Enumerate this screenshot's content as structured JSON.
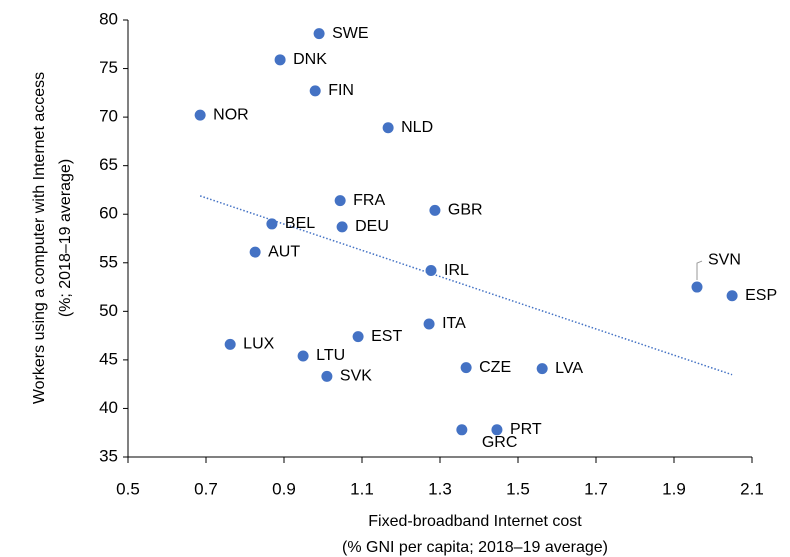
{
  "chart_data": {
    "type": "scatter",
    "x_label": [
      "Fixed-broadband  Internet cost",
      "(% GNI per capita; 2018–19 average)"
    ],
    "y_label": [
      "Workers using a computer with Internet access",
      "(%; 2018–19 average)"
    ],
    "labels": [
      "SWE",
      "DNK",
      "FIN",
      "NOR",
      "NLD",
      "FRA",
      "GBR",
      "BEL",
      "DEU",
      "AUT",
      "IRL",
      "SVN",
      "ESP",
      "ITA",
      "EST",
      "LUX",
      "LTU",
      "CZE",
      "LVA",
      "SVK",
      "GRC",
      "PRT"
    ],
    "x": [
      0.99,
      0.89,
      0.98,
      0.685,
      1.167,
      1.044,
      1.287,
      0.869,
      1.049,
      0.826,
      1.277,
      1.959,
      2.049,
      1.272,
      1.09,
      0.762,
      0.949,
      1.367,
      1.562,
      1.01,
      1.356,
      1.446
    ],
    "values": [
      78.6,
      75.9,
      72.7,
      70.2,
      68.9,
      61.4,
      60.4,
      59.0,
      58.7,
      56.1,
      54.2,
      52.5,
      51.6,
      48.7,
      47.4,
      46.6,
      45.4,
      44.2,
      44.1,
      43.3,
      37.8,
      37.8
    ],
    "color": "#4472c4",
    "trendline": true,
    "xlim": [
      0.5,
      2.1
    ],
    "xticks": [
      0.5,
      0.7,
      0.9,
      1.1,
      1.3,
      1.5,
      1.7,
      1.9,
      2.1
    ],
    "ylim": [
      35,
      80
    ],
    "yticks": [
      35,
      40,
      45,
      50,
      55,
      60,
      65,
      70,
      75,
      80
    ]
  }
}
